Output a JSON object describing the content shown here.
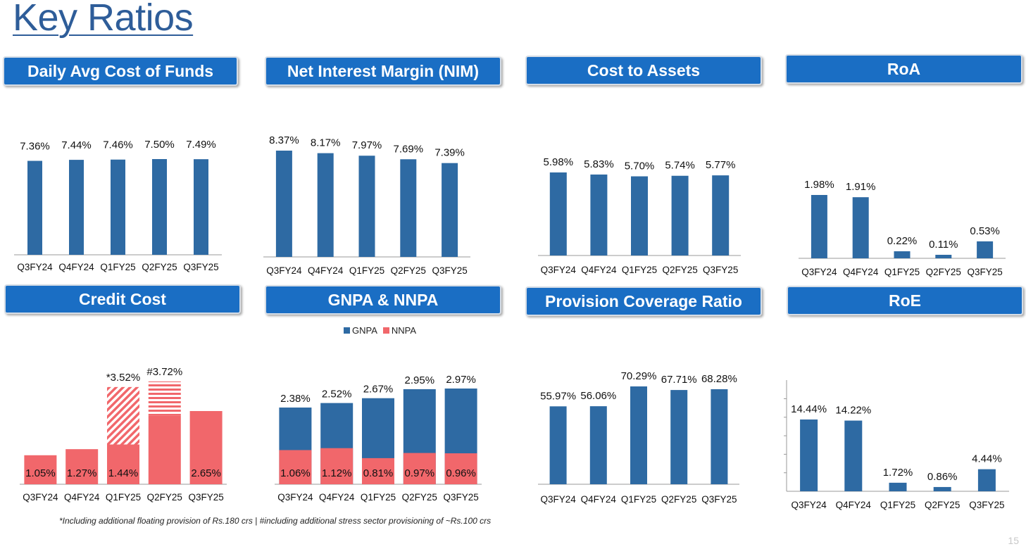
{
  "title": "Key Ratios",
  "page_number": "15",
  "footnote": "*Including additional floating provision of Rs.180 crs | #including additional stress sector provisioning of ~Rs.100 crs",
  "colors": {
    "bar": "#2e6aa3",
    "nnpa": "#f1676b",
    "header": "#1a6ec4",
    "title": "#2e5d99"
  },
  "legend": {
    "gnpa": "GNPA",
    "nnpa": "NNPA"
  },
  "chart_data": [
    {
      "id": "cof",
      "type": "bar",
      "title": "Daily Avg Cost of Funds",
      "categories": [
        "Q3FY24",
        "Q4FY24",
        "Q1FY25",
        "Q2FY25",
        "Q3FY25"
      ],
      "values": [
        7.36,
        7.44,
        7.46,
        7.5,
        7.49
      ],
      "labels": [
        "7.36%",
        "7.44%",
        "7.46%",
        "7.50%",
        "7.49%"
      ]
    },
    {
      "id": "nim",
      "type": "bar",
      "title": "Net Interest Margin (NIM)",
      "categories": [
        "Q3FY24",
        "Q4FY24",
        "Q1FY25",
        "Q2FY25",
        "Q3FY25"
      ],
      "values": [
        8.37,
        8.17,
        7.97,
        7.69,
        7.39
      ],
      "labels": [
        "8.37%",
        "8.17%",
        "7.97%",
        "7.69%",
        "7.39%"
      ]
    },
    {
      "id": "cta",
      "type": "bar",
      "title": "Cost to Assets",
      "categories": [
        "Q3FY24",
        "Q4FY24",
        "Q1FY25",
        "Q2FY25",
        "Q3FY25"
      ],
      "values": [
        5.98,
        5.83,
        5.7,
        5.74,
        5.77
      ],
      "labels": [
        "5.98%",
        "5.83%",
        "5.70%",
        "5.74%",
        "5.77%"
      ]
    },
    {
      "id": "roa",
      "type": "bar",
      "title": "RoA",
      "categories": [
        "Q3FY24",
        "Q4FY24",
        "Q1FY25",
        "Q2FY25",
        "Q3FY25"
      ],
      "values": [
        1.98,
        1.91,
        0.22,
        0.11,
        0.53
      ],
      "labels": [
        "1.98%",
        "1.91%",
        "0.22%",
        "0.11%",
        "0.53%"
      ]
    },
    {
      "id": "credit",
      "type": "bar",
      "title": "Credit Cost",
      "categories": [
        "Q3FY24",
        "Q4FY24",
        "Q1FY25",
        "Q2FY25",
        "Q3FY25"
      ],
      "values": [
        1.05,
        1.27,
        1.44,
        2.49,
        2.65
      ],
      "labels": [
        "1.05%",
        "1.27%",
        "1.44%",
        "",
        "2.65%"
      ],
      "additional": [
        {
          "index": 2,
          "value": 2.08,
          "pattern": "diagonal",
          "total_label": "*3.52%"
        },
        {
          "index": 3,
          "value": 1.23,
          "pattern": "horizontal",
          "total_label": "#3.72%"
        }
      ]
    },
    {
      "id": "npa",
      "type": "stacked-bar",
      "title": "GNPA & NNPA",
      "categories": [
        "Q3FY24",
        "Q4FY24",
        "Q1FY25",
        "Q2FY25",
        "Q3FY25"
      ],
      "series": [
        {
          "name": "GNPA",
          "values": [
            2.38,
            2.52,
            2.67,
            2.95,
            2.97
          ],
          "labels": [
            "2.38%",
            "2.52%",
            "2.67%",
            "2.95%",
            "2.97%"
          ]
        },
        {
          "name": "NNPA",
          "values": [
            1.06,
            1.12,
            0.81,
            0.97,
            0.96
          ],
          "labels": [
            "1.06%",
            "1.12%",
            "0.81%",
            "0.97%",
            "0.96%"
          ]
        }
      ],
      "legend_position": "top"
    },
    {
      "id": "pcr",
      "type": "bar",
      "title": "Provision Coverage Ratio",
      "categories": [
        "Q3FY24",
        "Q4FY24",
        "Q1FY25",
        "Q2FY25",
        "Q3FY25"
      ],
      "values": [
        55.97,
        56.06,
        70.29,
        67.71,
        68.28
      ],
      "labels": [
        "55.97%",
        "56.06%",
        "70.29%",
        "67.71%",
        "68.28%"
      ]
    },
    {
      "id": "roe",
      "type": "bar",
      "title": "RoE",
      "categories": [
        "Q3FY24",
        "Q4FY24",
        "Q1FY25",
        "Q2FY25",
        "Q3FY25"
      ],
      "values": [
        14.44,
        14.22,
        1.72,
        0.86,
        4.44
      ],
      "labels": [
        "14.44%",
        "14.22%",
        "1.72%",
        "0.86%",
        "4.44%"
      ]
    }
  ]
}
